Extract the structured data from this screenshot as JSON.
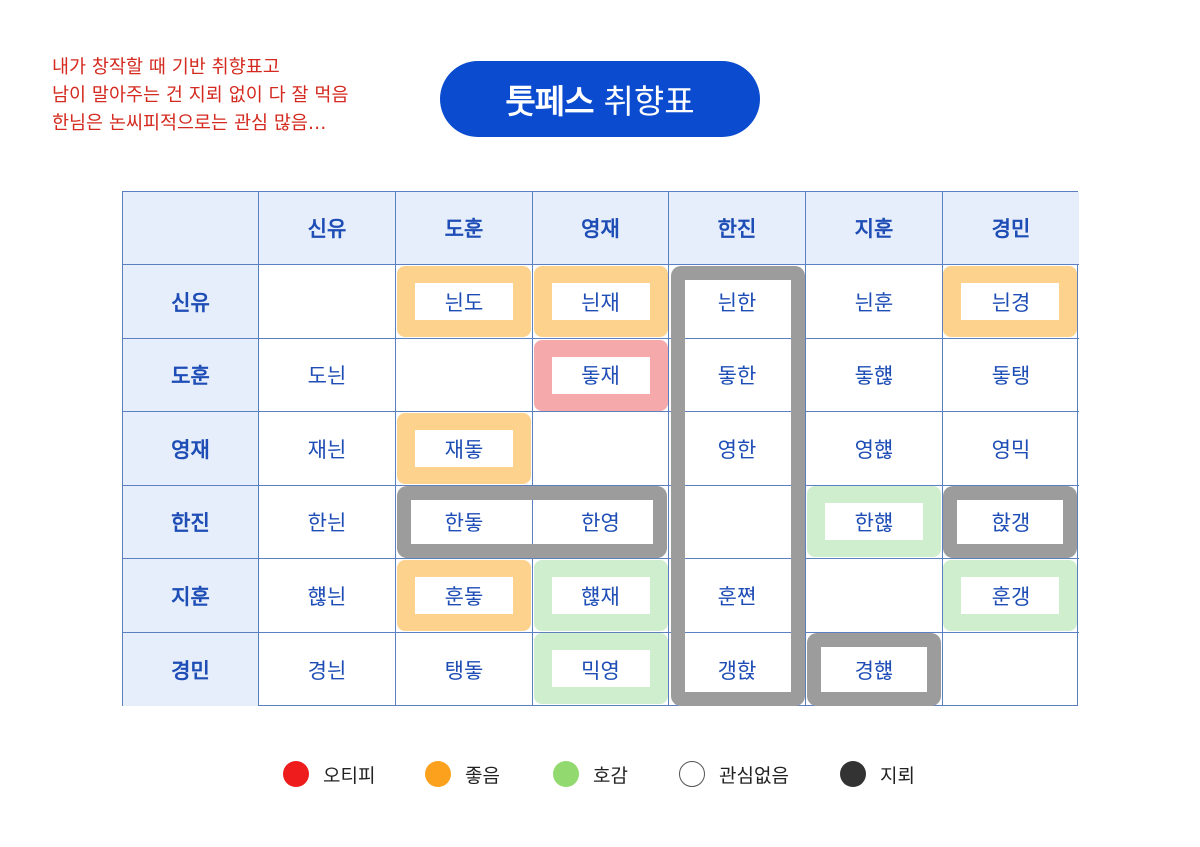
{
  "note": {
    "lines": [
      "내가 창작할 때 기반 취향표고",
      "남이 말아주는 건 지뢰 없이 다 잘 먹음",
      "한님은 논씨피적으로는 관심 많음…"
    ]
  },
  "title": {
    "bold": "툿페스",
    "light": "취향표"
  },
  "table": {
    "columns": [
      "신유",
      "도훈",
      "영재",
      "한진",
      "지훈",
      "경민"
    ],
    "rows": [
      {
        "label": "신유",
        "cells": [
          "",
          "늰도",
          "늰재",
          "늰한",
          "늰훈",
          "늰경"
        ]
      },
      {
        "label": "도훈",
        "cells": [
          "도늰",
          "",
          "돟재",
          "돟한",
          "돟햲",
          "돟탱"
        ]
      },
      {
        "label": "영재",
        "cells": [
          "재늰",
          "재돟",
          "",
          "영한",
          "영햲",
          "영믹"
        ]
      },
      {
        "label": "한진",
        "cells": [
          "한늰",
          "한돟",
          "한영",
          "",
          "한햲",
          "핝갱"
        ]
      },
      {
        "label": "지훈",
        "cells": [
          "햲늰",
          "훈돟",
          "햲재",
          "훈쪈",
          "",
          "훈갱"
        ]
      },
      {
        "label": "경민",
        "cells": [
          "경늰",
          "탱돟",
          "믹영",
          "갱핝",
          "경햲",
          ""
        ]
      }
    ]
  },
  "legend": [
    {
      "label": "오티피",
      "color": "#ee1c1c"
    },
    {
      "label": "좋음",
      "color": "#fca11e"
    },
    {
      "label": "호감",
      "color": "#92d96f"
    },
    {
      "label": "관심없음",
      "color": "#ffffff"
    },
    {
      "label": "지뢰",
      "color": "#333333"
    }
  ],
  "colors": {
    "title_bg": "#0a4bd0",
    "note_text": "#d42a1f",
    "header_bg": "#e6eefc",
    "cell_text": "#1d4db5",
    "highlight_orange": "#fdd28d",
    "highlight_pink": "#f6a9aa",
    "highlight_green": "#cfeecd",
    "frame_gray": "#9c9c9c"
  }
}
